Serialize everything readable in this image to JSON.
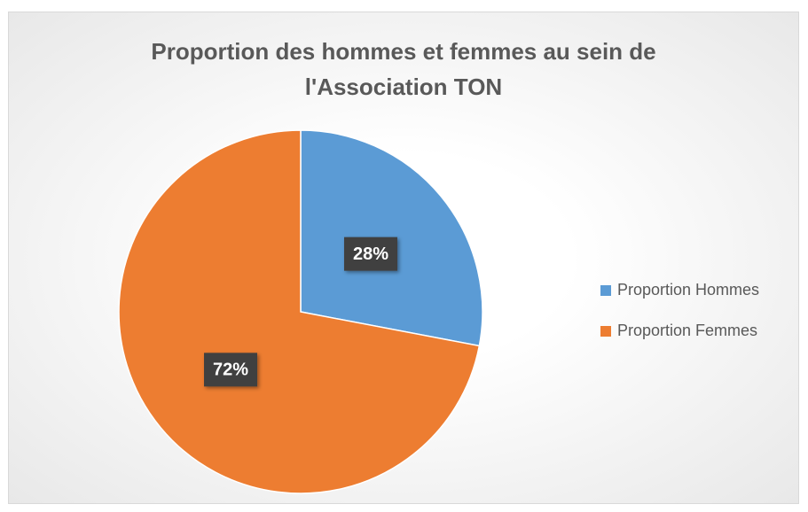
{
  "chart_data": {
    "type": "pie",
    "title": "Proportion des hommes et femmes au sein de l'Association TON",
    "categories": [
      "Proportion Hommes",
      "Proportion Femmes"
    ],
    "values": [
      28,
      72
    ],
    "value_labels": [
      "28%",
      "72%"
    ],
    "colors": [
      "#5b9bd5",
      "#ed7d31"
    ],
    "legend": "right"
  }
}
